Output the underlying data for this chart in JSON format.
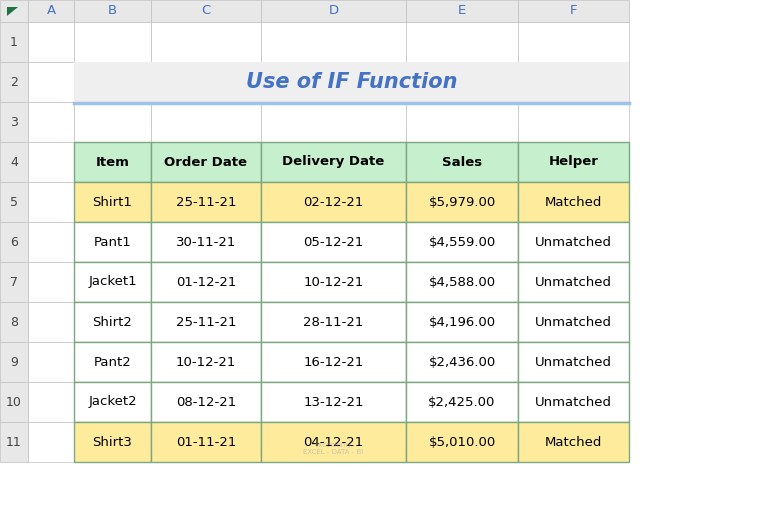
{
  "title": "Use of IF Function",
  "title_fontsize": 15,
  "title_color": "#4472C4",
  "title_bg": "#EFEFEF",
  "title_underline_color": "#9DC3E6",
  "columns": [
    "Item",
    "Order Date",
    "Delivery Date",
    "Sales",
    "Helper"
  ],
  "rows": [
    [
      "Shirt1",
      "25-11-21",
      "02-12-21",
      "$5,979.00",
      "Matched"
    ],
    [
      "Pant1",
      "30-11-21",
      "05-12-21",
      "$4,559.00",
      "Unmatched"
    ],
    [
      "Jacket1",
      "01-12-21",
      "10-12-21",
      "$4,588.00",
      "Unmatched"
    ],
    [
      "Shirt2",
      "25-11-21",
      "28-11-21",
      "$4,196.00",
      "Unmatched"
    ],
    [
      "Pant2",
      "10-12-21",
      "16-12-21",
      "$2,436.00",
      "Unmatched"
    ],
    [
      "Jacket2",
      "08-12-21",
      "13-12-21",
      "$2,425.00",
      "Unmatched"
    ],
    [
      "Shirt3",
      "01-11-21",
      "04-12-21",
      "$5,010.00",
      "Matched"
    ]
  ],
  "header_bg": "#C6EFCE",
  "header_border": "#7BA87F",
  "matched_bg": "#FFEB9C",
  "unmatched_bg": "#FFFFFF",
  "cell_border": "#7BA87F",
  "excel_col_labels": [
    "A",
    "B",
    "C",
    "D",
    "E",
    "F"
  ],
  "excel_row_labels": [
    "1",
    "2",
    "3",
    "4",
    "5",
    "6",
    "7",
    "8",
    "9",
    "10",
    "11"
  ],
  "excel_header_bg": "#E8E8E8",
  "excel_header_text": "#444444",
  "bg_color": "#FFFFFF",
  "figure_bg": "#FFFFFF",
  "tri_color": "#217346",
  "col_header_text_color": "#4472C4",
  "watermark_text": "exceldemy\nEXCEL - DATA - BI"
}
